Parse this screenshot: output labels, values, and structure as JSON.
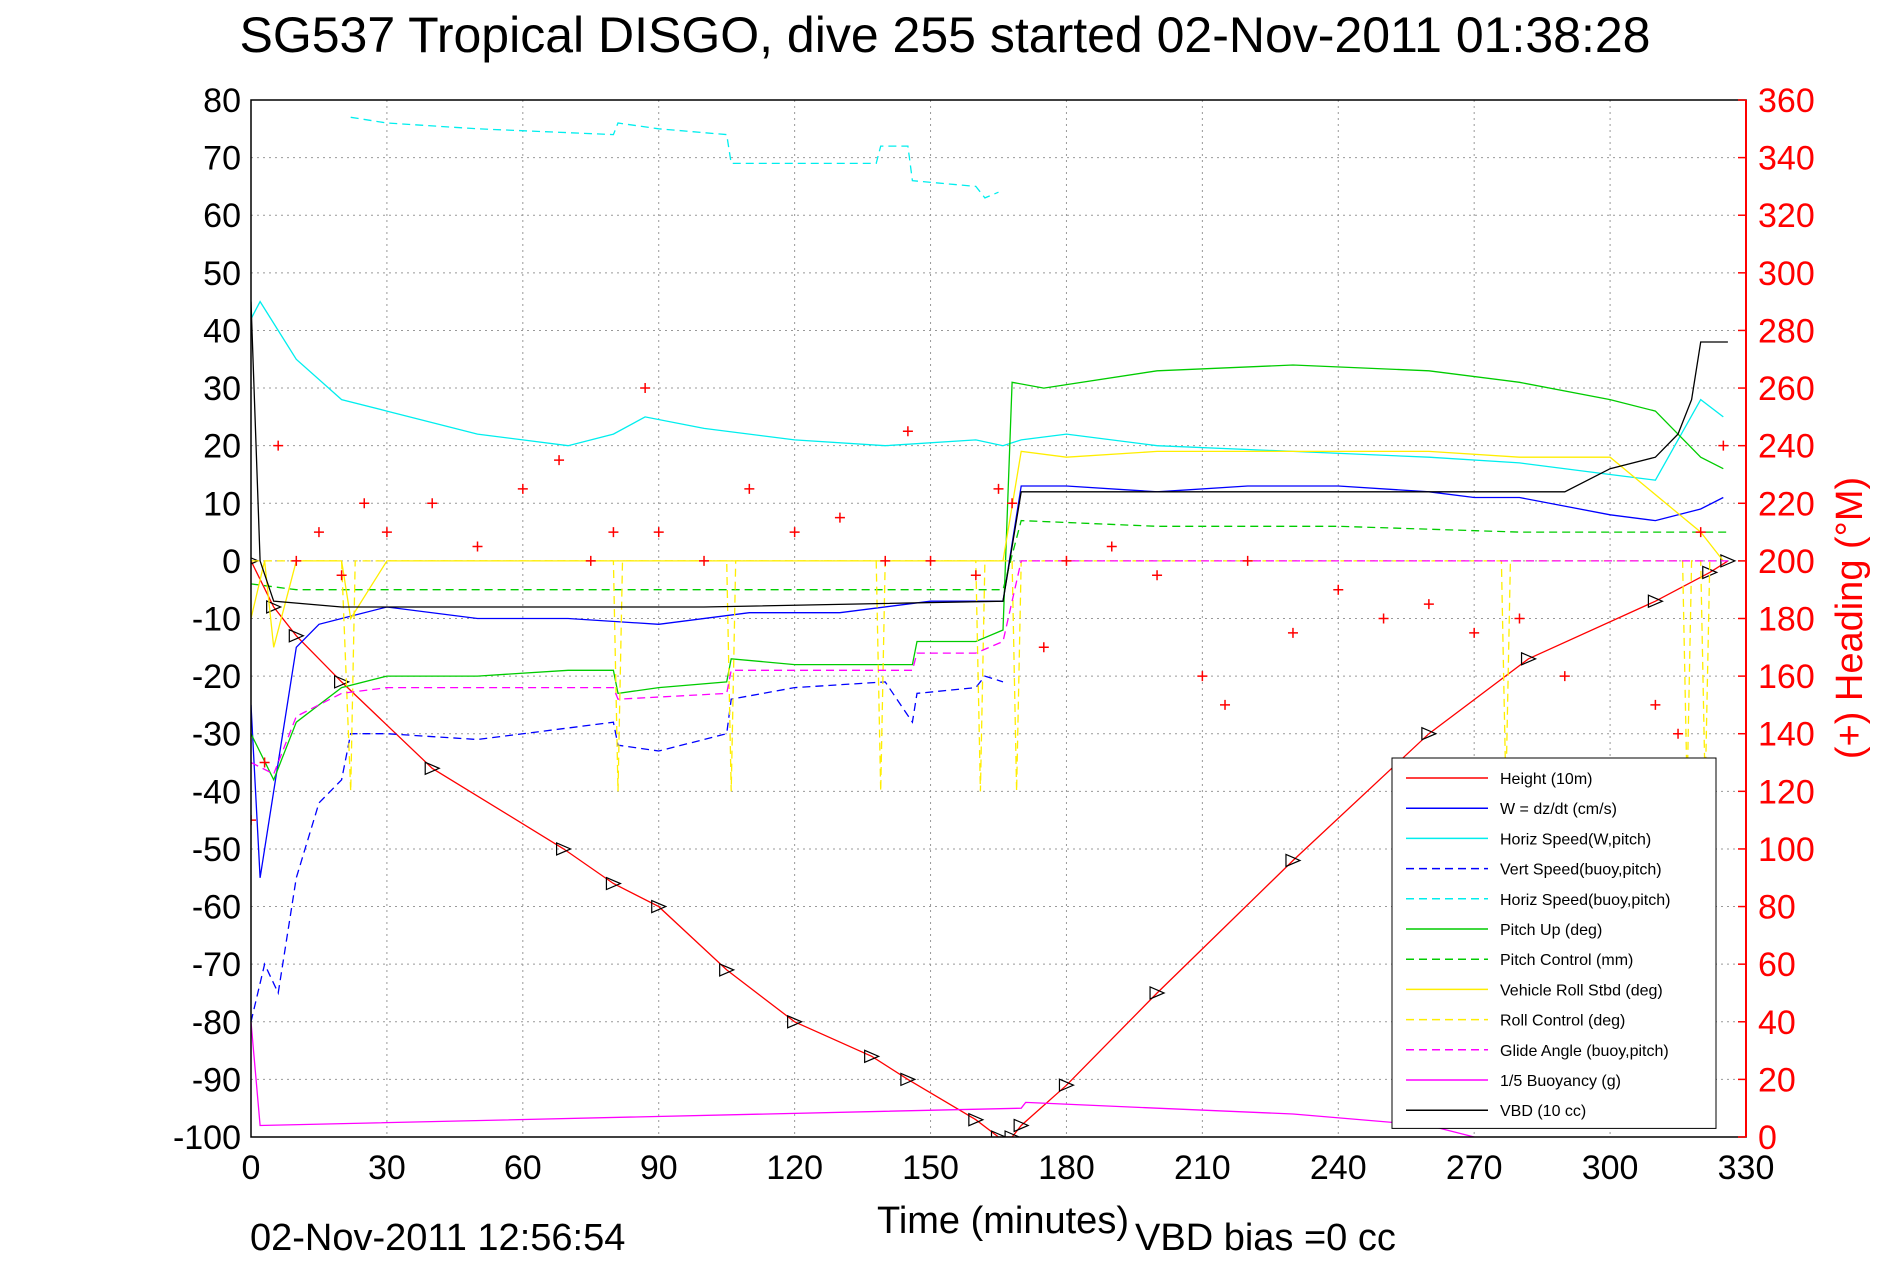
{
  "chart_data": {
    "type": "line",
    "title": "SG537 Tropical DISGO, dive 255 started 02-Nov-2011 01:38:28",
    "xlabel": "Time (minutes)",
    "ylabel_right": "(+) Heading (°M)",
    "footer_timestamp": "02-Nov-2011 12:56:54",
    "footer_note": "VBD bias =0 cc",
    "xlim": [
      0,
      330
    ],
    "ylim": [
      -100,
      80
    ],
    "y2lim": [
      0,
      360
    ],
    "xticks": [
      0,
      30,
      60,
      90,
      120,
      150,
      180,
      210,
      240,
      270,
      300,
      330
    ],
    "yticks": [
      80,
      70,
      60,
      50,
      40,
      30,
      20,
      10,
      0,
      -10,
      -20,
      -30,
      -40,
      -50,
      -60,
      -70,
      -80,
      -90,
      -100
    ],
    "y2ticks": [
      360,
      340,
      320,
      300,
      280,
      260,
      240,
      220,
      200,
      180,
      160,
      140,
      120,
      100,
      80,
      60,
      40,
      20,
      0
    ],
    "grid": true,
    "legend_position": "bottom-right",
    "series": [
      {
        "name": "Height (10m)",
        "color": "#ff0000",
        "style": "solid",
        "x": [
          0,
          5,
          10,
          20,
          40,
          69,
          80,
          90,
          105,
          120,
          137,
          145,
          160,
          165,
          168,
          170,
          180,
          200,
          230,
          260,
          282,
          310,
          322,
          326
        ],
        "y": [
          0,
          -8,
          -13,
          -21,
          -36,
          -50,
          -56,
          -60,
          -71,
          -80,
          -86,
          -90,
          -97,
          -100,
          -100,
          -98,
          -91,
          -75,
          -52,
          -30,
          -17,
          -7,
          -2,
          0
        ]
      },
      {
        "name": "W = dz/dt (cm/s)",
        "color": "#0000ff",
        "style": "solid",
        "x": [
          0,
          2,
          6,
          10,
          15,
          20,
          30,
          50,
          70,
          90,
          110,
          130,
          150,
          166,
          170,
          180,
          200,
          220,
          240,
          260,
          270,
          280,
          300,
          310,
          320,
          325
        ],
        "y": [
          -25,
          -55,
          -35,
          -15,
          -11,
          -10,
          -8,
          -10,
          -10,
          -11,
          -9,
          -9,
          -7,
          -7,
          13,
          13,
          12,
          13,
          13,
          12,
          11,
          11,
          8,
          7,
          9,
          11
        ]
      },
      {
        "name": "Horiz Speed(W,pitch)",
        "color": "#00eeee",
        "style": "solid",
        "x": [
          0,
          2,
          10,
          20,
          30,
          40,
          50,
          60,
          70,
          80,
          87,
          100,
          120,
          140,
          160,
          166,
          170,
          180,
          200,
          230,
          260,
          280,
          300,
          310,
          320,
          325
        ],
        "y": [
          42,
          45,
          35,
          28,
          26,
          24,
          22,
          21,
          20,
          22,
          25,
          23,
          21,
          20,
          21,
          20,
          21,
          22,
          20,
          19,
          18,
          17,
          15,
          14,
          28,
          25
        ]
      },
      {
        "name": "Vert Speed(buoy,pitch)",
        "color": "#0000ff",
        "style": "dashed",
        "x": [
          0,
          3,
          6,
          10,
          15,
          20,
          22,
          30,
          50,
          70,
          80,
          81,
          90,
          100,
          105,
          106,
          120,
          140,
          146,
          147,
          160,
          162,
          166
        ],
        "y": [
          -80,
          -70,
          -75,
          -55,
          -42,
          -38,
          -30,
          -30,
          -31,
          -29,
          -28,
          -32,
          -33,
          -31,
          -30,
          -24,
          -22,
          -21,
          -28,
          -23,
          -22,
          -20,
          -21
        ]
      },
      {
        "name": "Horiz Speed(buoy,pitch)",
        "color": "#00eeee",
        "style": "dashed",
        "x": [
          22,
          30,
          50,
          80,
          81,
          90,
          105,
          106,
          120,
          138,
          139,
          145,
          146,
          160,
          162,
          165
        ],
        "y": [
          77,
          76,
          75,
          74,
          76,
          75,
          74,
          69,
          69,
          69,
          72,
          72,
          66,
          65,
          63,
          64
        ]
      },
      {
        "name": "Pitch Up (deg)",
        "color": "#00cc00",
        "style": "solid",
        "x": [
          0,
          5,
          10,
          20,
          30,
          50,
          70,
          80,
          81,
          90,
          105,
          106,
          120,
          140,
          146,
          147,
          160,
          166,
          168,
          175,
          200,
          230,
          260,
          280,
          300,
          310,
          320,
          325
        ],
        "y": [
          -30,
          -38,
          -28,
          -22,
          -20,
          -20,
          -19,
          -19,
          -23,
          -22,
          -21,
          -17,
          -18,
          -18,
          -18,
          -14,
          -14,
          -12,
          31,
          30,
          33,
          34,
          33,
          31,
          28,
          26,
          18,
          16
        ]
      },
      {
        "name": "Pitch Control (mm)",
        "color": "#00cc00",
        "style": "dashed",
        "x": [
          0,
          10,
          20,
          30,
          60,
          90,
          120,
          150,
          166,
          170,
          200,
          240,
          280,
          320,
          326
        ],
        "y": [
          -4,
          -5,
          -5,
          -5,
          -5,
          -5,
          -5,
          -5,
          -5,
          7,
          6,
          6,
          5,
          5,
          5
        ]
      },
      {
        "name": "Vehicle Roll Stbd (deg)",
        "color": "#ffee00",
        "style": "solid",
        "x": [
          0,
          3,
          5,
          10,
          15,
          20,
          22,
          30,
          50,
          70,
          80,
          90,
          105,
          120,
          140,
          160,
          166,
          170,
          180,
          200,
          230,
          260,
          280,
          300,
          320,
          325
        ],
        "y": [
          -10,
          0,
          -15,
          0,
          0,
          0,
          -10,
          0,
          0,
          0,
          0,
          0,
          0,
          0,
          0,
          0,
          0,
          19,
          18,
          19,
          19,
          19,
          18,
          18,
          5,
          0
        ]
      },
      {
        "name": "Roll Control (deg)",
        "color": "#ffee00",
        "style": "dashed",
        "x": [
          0,
          20,
          22,
          23,
          80,
          81,
          82,
          105,
          106,
          107,
          138,
          139,
          140,
          160,
          161,
          162,
          168,
          169,
          170,
          200,
          276,
          277,
          278,
          316,
          317,
          318,
          320,
          321,
          322
        ],
        "y": [
          0,
          0,
          -40,
          0,
          0,
          -40,
          0,
          0,
          -40,
          0,
          0,
          -40,
          0,
          0,
          -40,
          0,
          0,
          -40,
          0,
          0,
          0,
          -40,
          0,
          0,
          -40,
          0,
          0,
          -40,
          0
        ]
      },
      {
        "name": "Glide Angle (buoy,pitch)",
        "color": "#ff00ff",
        "style": "dashed",
        "x": [
          0,
          5,
          10,
          20,
          30,
          60,
          80,
          81,
          105,
          106,
          140,
          146,
          147,
          160,
          166,
          170,
          200,
          250,
          300,
          326
        ],
        "y": [
          -35,
          -37,
          -27,
          -23,
          -22,
          -22,
          -22,
          -24,
          -23,
          -19,
          -19,
          -19,
          -16,
          -16,
          -14,
          0,
          0,
          0,
          0,
          0
        ]
      },
      {
        "name": "1/5 Buoyancy (g)",
        "color": "#ff00ff",
        "style": "solid",
        "x": [
          0,
          2,
          170,
          171,
          200,
          230,
          260,
          270
        ],
        "y": [
          -80,
          -98,
          -95,
          -94,
          -95,
          -96,
          -98,
          -100
        ]
      },
      {
        "name": "VBD (10 cc)",
        "color": "#000000",
        "style": "solid",
        "x": [
          0,
          2,
          5,
          20,
          60,
          100,
          166,
          170,
          260,
          290,
          300,
          310,
          315,
          318,
          320,
          326
        ],
        "y": [
          45,
          0,
          -7,
          -8,
          -8,
          -8,
          -7,
          12,
          12,
          12,
          16,
          18,
          22,
          28,
          38,
          38
        ]
      },
      {
        "name": "Heading",
        "color": "#ff0000",
        "style": "markers",
        "axis": "right",
        "x": [
          0,
          3,
          6,
          10,
          15,
          20,
          25,
          30,
          40,
          50,
          60,
          68,
          75,
          80,
          87,
          90,
          100,
          110,
          120,
          130,
          140,
          145,
          150,
          160,
          165,
          168,
          175,
          180,
          190,
          200,
          210,
          215,
          220,
          230,
          240,
          250,
          260,
          270,
          280,
          290,
          300,
          305,
          310,
          315,
          320,
          325
        ],
        "y": [
          110,
          130,
          240,
          200,
          210,
          195,
          220,
          210,
          220,
          205,
          225,
          235,
          200,
          210,
          260,
          210,
          200,
          225,
          210,
          215,
          200,
          245,
          200,
          195,
          225,
          220,
          170,
          200,
          205,
          195,
          160,
          150,
          200,
          175,
          190,
          180,
          185,
          175,
          180,
          160,
          130,
          100,
          150,
          140,
          210,
          240
        ]
      }
    ]
  }
}
